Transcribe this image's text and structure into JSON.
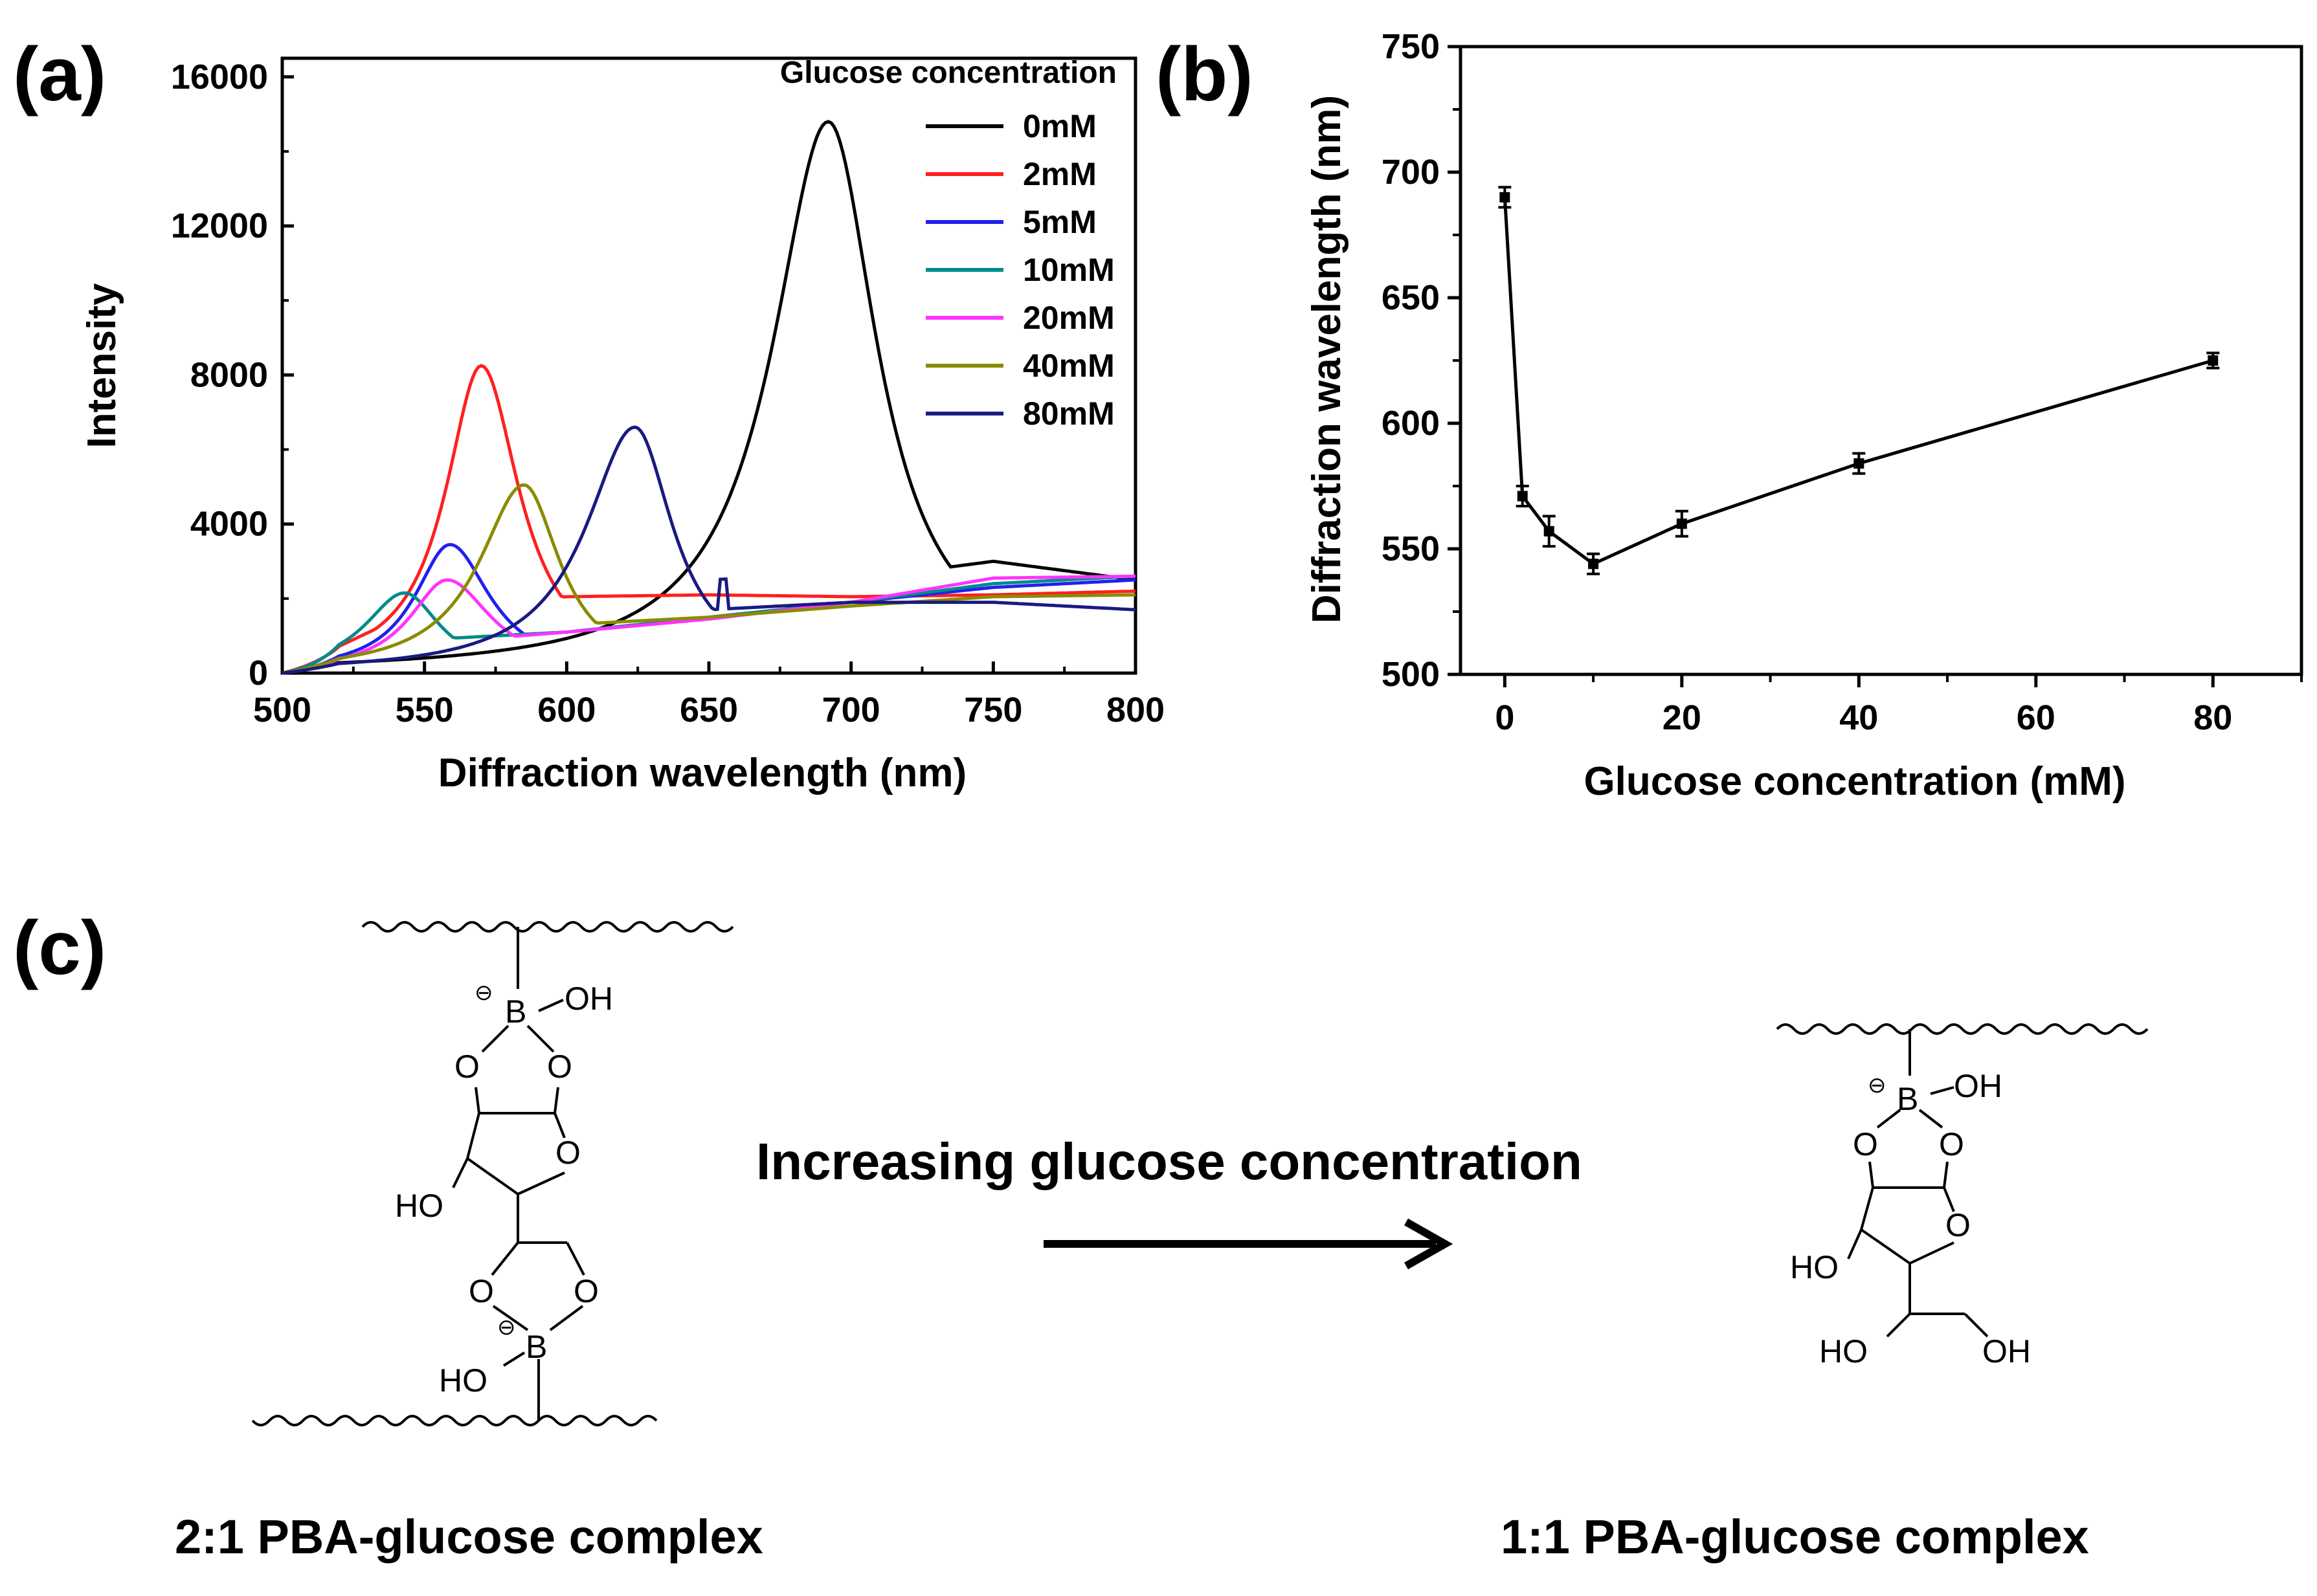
{
  "panels": {
    "a": "(a)",
    "b": "(b)",
    "c": "(c)"
  },
  "chart_data": [
    {
      "type": "line",
      "panel": "(a)",
      "xlabel": "Diffraction wavelength (nm)",
      "ylabel": "Intensity",
      "xlim": [
        500,
        800
      ],
      "ylim": [
        0,
        16500
      ],
      "xticks": [
        500,
        550,
        600,
        650,
        700,
        750,
        800
      ],
      "yticks": [
        0,
        4000,
        8000,
        12000,
        16000
      ],
      "legend_title": "Glucose concentration",
      "legend_position": "top-right",
      "series": [
        {
          "name": "0mM",
          "color": "#000000",
          "peak_x": 692,
          "peak_y": 14800,
          "left_width": 25,
          "right_width": 22,
          "baseline": [
            [
              500,
              0
            ],
            [
              550,
              100
            ],
            [
              600,
              500
            ],
            [
              650,
              1200
            ],
            [
              700,
              2500
            ],
            [
              750,
              3000
            ],
            [
              800,
              2500
            ]
          ]
        },
        {
          "name": "2mM",
          "color": "#ff2020",
          "peak_x": 570,
          "peak_y": 8250,
          "left_width": 16,
          "right_width": 17,
          "baseline": [
            [
              500,
              0
            ],
            [
              550,
              1800
            ],
            [
              600,
              2050
            ],
            [
              650,
              2100
            ],
            [
              700,
              2050
            ],
            [
              750,
              2100
            ],
            [
              800,
              2200
            ]
          ]
        },
        {
          "name": "5mM",
          "color": "#2020ee",
          "peak_x": 559,
          "peak_y": 3450,
          "left_width": 16,
          "right_width": 18,
          "baseline": [
            [
              500,
              0
            ],
            [
              550,
              900
            ],
            [
              600,
              1100
            ],
            [
              650,
              1500
            ],
            [
              700,
              1900
            ],
            [
              750,
              2300
            ],
            [
              800,
              2500
            ]
          ]
        },
        {
          "name": "10mM",
          "color": "#008b8b",
          "peak_x": 543,
          "peak_y": 2150,
          "left_width": 18,
          "right_width": 16,
          "baseline": [
            [
              500,
              0
            ],
            [
              550,
              900
            ],
            [
              600,
              1100
            ],
            [
              650,
              1500
            ],
            [
              700,
              1900
            ],
            [
              750,
              2400
            ],
            [
              800,
              2600
            ]
          ]
        },
        {
          "name": "20mM",
          "color": "#ff33ff",
          "peak_x": 558,
          "peak_y": 2500,
          "left_width": 17,
          "right_width": 20,
          "baseline": [
            [
              500,
              0
            ],
            [
              550,
              800
            ],
            [
              600,
              1100
            ],
            [
              650,
              1450
            ],
            [
              700,
              1900
            ],
            [
              750,
              2550
            ],
            [
              800,
              2600
            ]
          ]
        },
        {
          "name": "40mM",
          "color": "#8b8b00",
          "peak_x": 585,
          "peak_y": 5050,
          "left_width": 20,
          "right_width": 16,
          "baseline": [
            [
              500,
              0
            ],
            [
              550,
              600
            ],
            [
              600,
              1300
            ],
            [
              650,
              1500
            ],
            [
              700,
              1800
            ],
            [
              750,
              2050
            ],
            [
              800,
              2100
            ]
          ]
        },
        {
          "name": "80mM",
          "color": "#1a1a80",
          "peak_x": 624,
          "peak_y": 6600,
          "left_width": 22,
          "right_width": 17,
          "baseline": [
            [
              500,
              0
            ],
            [
              550,
              200
            ],
            [
              600,
              1100
            ],
            [
              650,
              1700
            ],
            [
              700,
              1900
            ],
            [
              750,
              1900
            ],
            [
              800,
              1700
            ]
          ]
        }
      ]
    },
    {
      "type": "line",
      "panel": "(b)",
      "xlabel": "Glucose concentration (mM)",
      "ylabel": "Diffraction wavelength (nm)",
      "xlim": [
        -5,
        90
      ],
      "ylim": [
        500,
        750
      ],
      "xticks": [
        0,
        20,
        40,
        60,
        80
      ],
      "yticks": [
        500,
        550,
        600,
        650,
        700,
        750
      ],
      "x": [
        0,
        2,
        5,
        10,
        20,
        40,
        80
      ],
      "y": [
        690,
        571,
        557,
        544,
        560,
        584,
        625
      ],
      "yerr": [
        4,
        4,
        6,
        4,
        5,
        4,
        3
      ]
    }
  ],
  "scheme": {
    "arrow_label": "Increasing  glucose concentration",
    "left_caption": "2:1 PBA-glucose complex",
    "right_caption": "1:1 PBA-glucose complex",
    "atoms": {
      "B": "B",
      "O": "O",
      "OH": "OH",
      "HO": "HO",
      "charge": "⊖"
    }
  }
}
